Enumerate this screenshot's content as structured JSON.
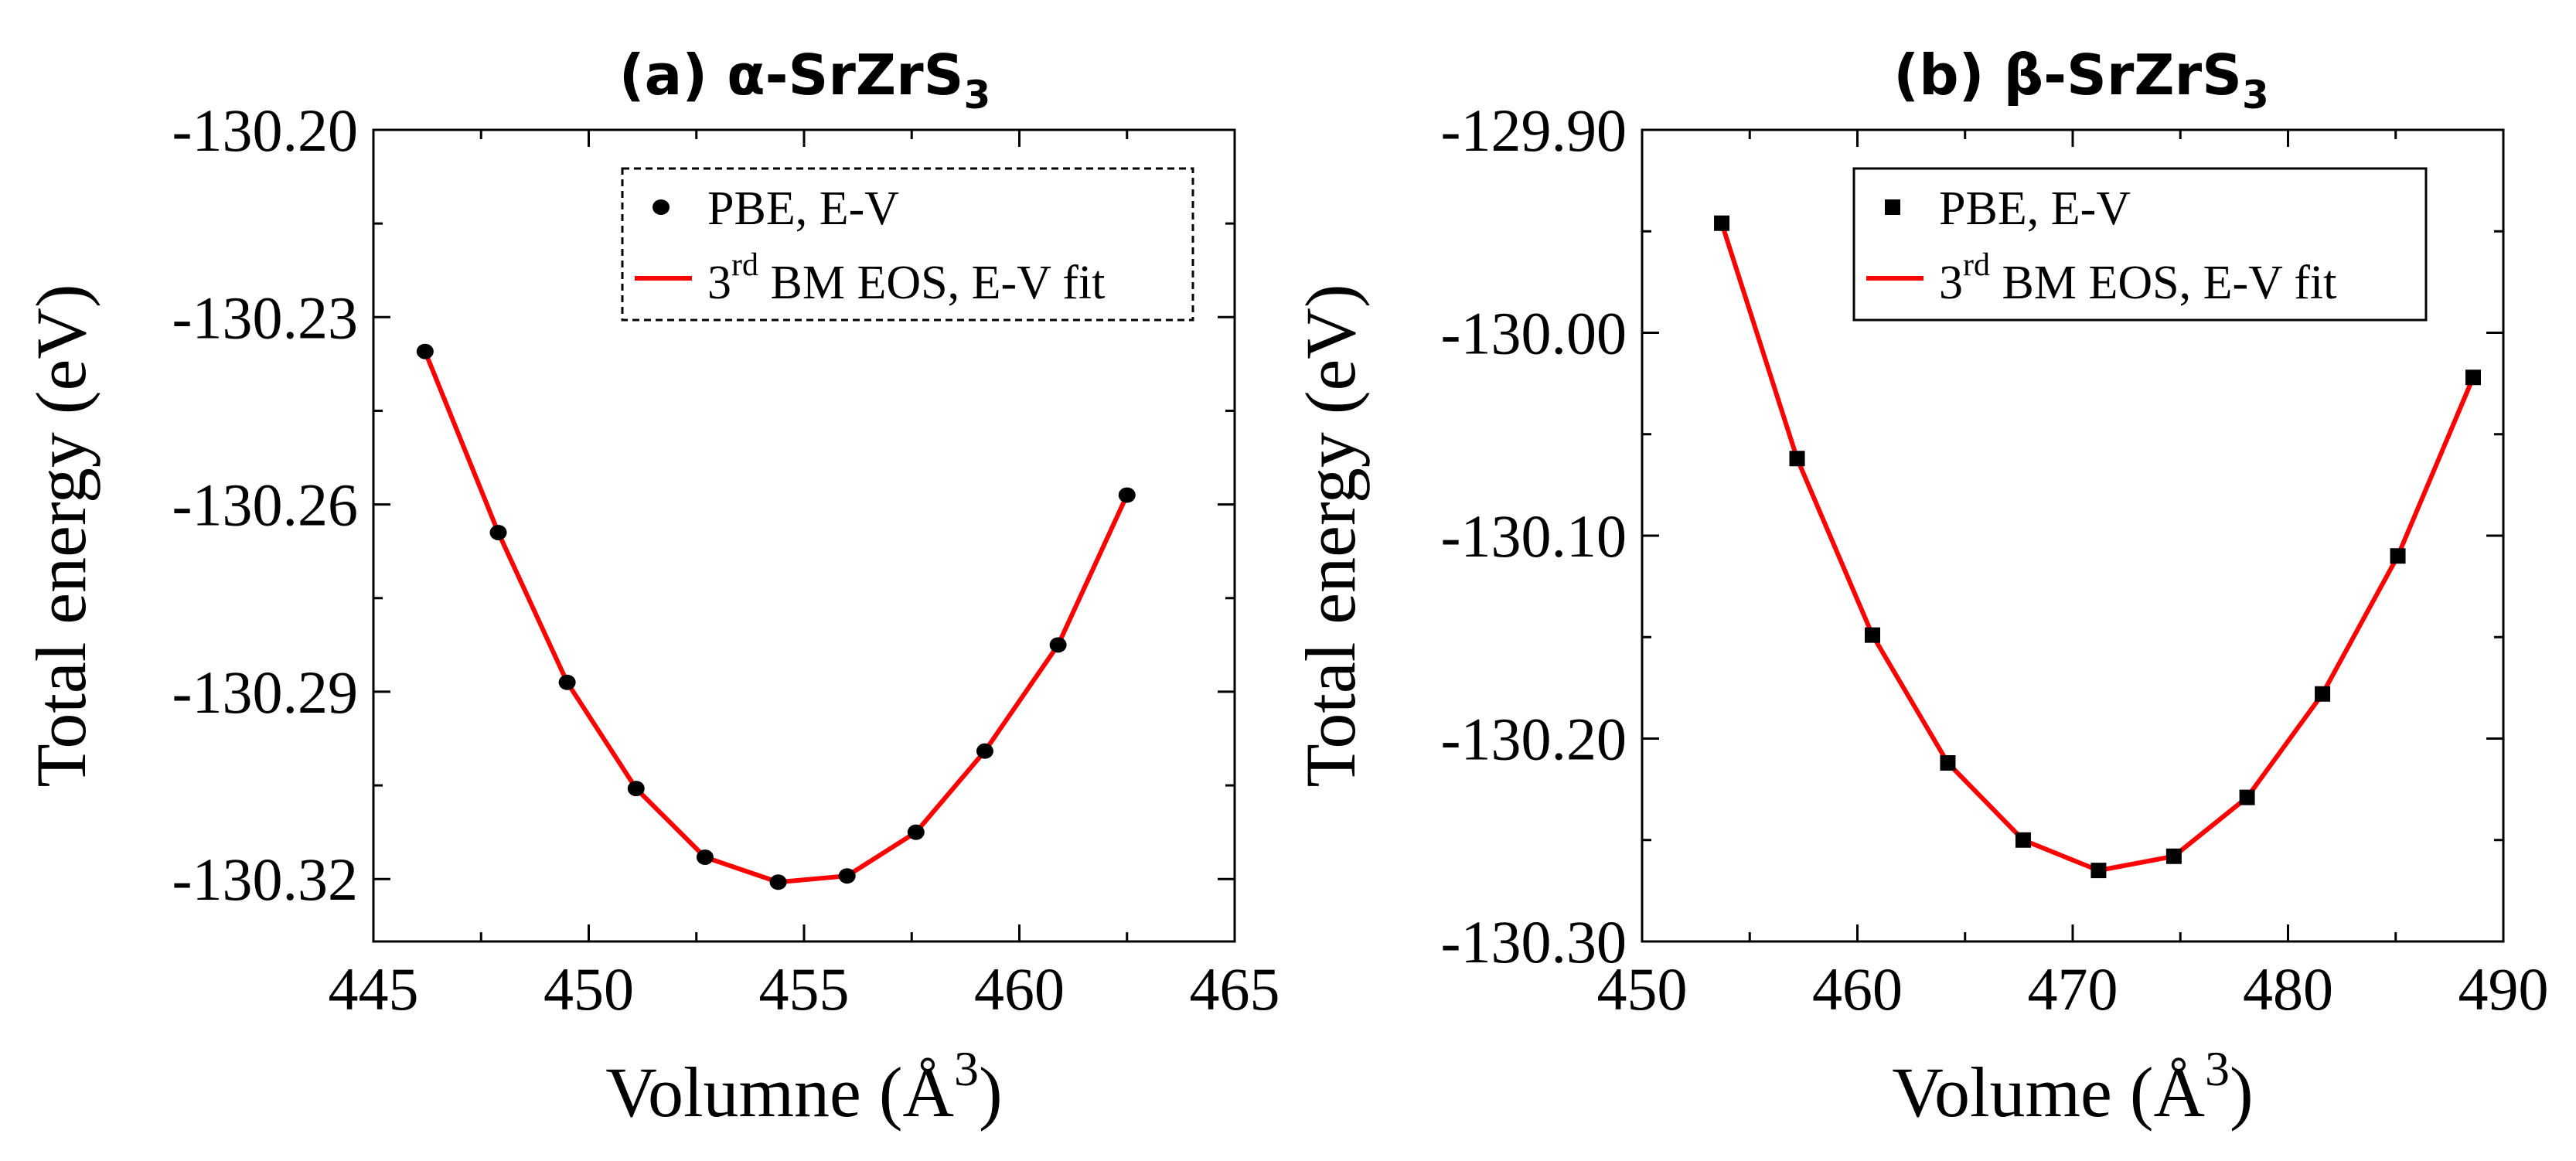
{
  "chart_data": [
    {
      "type": "scatter",
      "title": "(a) α-SrZrS",
      "title_sub": "3",
      "xlabel": "Volumne (Å",
      "xlabel_sup": "3",
      "xlabel_close": ")",
      "ylabel": "Total energy (eV)",
      "xlim": [
        445,
        465
      ],
      "ylim": [
        -130.33,
        -130.2
      ],
      "xticks": [
        445,
        450,
        455,
        460,
        465
      ],
      "xtick_labels": [
        "445",
        "450",
        "455",
        "460",
        "465"
      ],
      "yticks": [
        -130.2,
        -130.23,
        -130.26,
        -130.29,
        -130.32
      ],
      "ytick_labels": [
        "-130.20",
        "-130.23",
        "-130.26",
        "-130.29",
        "-130.32"
      ],
      "legend_border": "dashed",
      "marker": "circle",
      "legend": [
        {
          "label": "PBE, E-V"
        },
        {
          "label_pre": "3",
          "label_sup": "rd",
          "label_post": " BM EOS, E-V fit"
        }
      ],
      "series": [
        {
          "name": "PBE, E-V",
          "x": [
            446.2,
            447.9,
            449.5,
            451.1,
            452.7,
            454.4,
            456.0,
            457.6,
            459.2,
            460.9,
            462.5
          ],
          "y": [
            -130.2355,
            -130.2645,
            -130.2885,
            -130.3055,
            -130.3165,
            -130.3205,
            -130.3195,
            -130.3125,
            -130.2995,
            -130.2825,
            -130.2585
          ]
        },
        {
          "name": "3rd BM EOS, E-V fit",
          "x": [
            446.2,
            447.9,
            449.5,
            451.1,
            452.7,
            454.4,
            456.0,
            457.6,
            459.2,
            460.9,
            462.5
          ],
          "y": [
            -130.2355,
            -130.2645,
            -130.2885,
            -130.3055,
            -130.3165,
            -130.3205,
            -130.3195,
            -130.3125,
            -130.2995,
            -130.2825,
            -130.2585
          ]
        }
      ],
      "colors": {
        "points": "#000000",
        "fit": "#ff0000"
      }
    },
    {
      "type": "scatter",
      "title": "(b) β-SrZrS",
      "title_sub": "3",
      "xlabel": "Volume (Å",
      "xlabel_sup": "3",
      "xlabel_close": ")",
      "ylabel": "Total energy (eV)",
      "xlim": [
        450,
        490
      ],
      "ylim": [
        -130.3,
        -129.9
      ],
      "xticks": [
        450,
        460,
        470,
        480,
        490
      ],
      "xtick_labels": [
        "450",
        "460",
        "470",
        "480",
        "490"
      ],
      "yticks": [
        -129.9,
        -130.0,
        -130.1,
        -130.2,
        -130.3
      ],
      "ytick_labels": [
        "-129.90",
        "-130.00",
        "-130.10",
        "-130.20",
        "-130.30"
      ],
      "legend_border": "solid",
      "marker": "square",
      "legend": [
        {
          "label": "PBE, E-V"
        },
        {
          "label_pre": "3",
          "label_sup": "rd",
          "label_post": " BM EOS, E-V fit"
        }
      ],
      "series": [
        {
          "name": "PBE, E-V",
          "x": [
            453.7,
            457.2,
            460.7,
            464.2,
            467.7,
            471.2,
            474.7,
            478.1,
            481.6,
            485.1,
            488.6
          ],
          "y": [
            -129.946,
            -130.062,
            -130.149,
            -130.212,
            -130.25,
            -130.265,
            -130.258,
            -130.229,
            -130.178,
            -130.11,
            -130.022
          ]
        },
        {
          "name": "3rd BM EOS, E-V fit",
          "x": [
            453.7,
            457.2,
            460.7,
            464.2,
            467.7,
            471.2,
            474.7,
            478.1,
            481.6,
            485.1,
            488.6
          ],
          "y": [
            -129.946,
            -130.062,
            -130.149,
            -130.212,
            -130.25,
            -130.265,
            -130.258,
            -130.229,
            -130.178,
            -130.11,
            -130.022
          ]
        }
      ],
      "colors": {
        "points": "#000000",
        "fit": "#ff0000"
      }
    }
  ]
}
